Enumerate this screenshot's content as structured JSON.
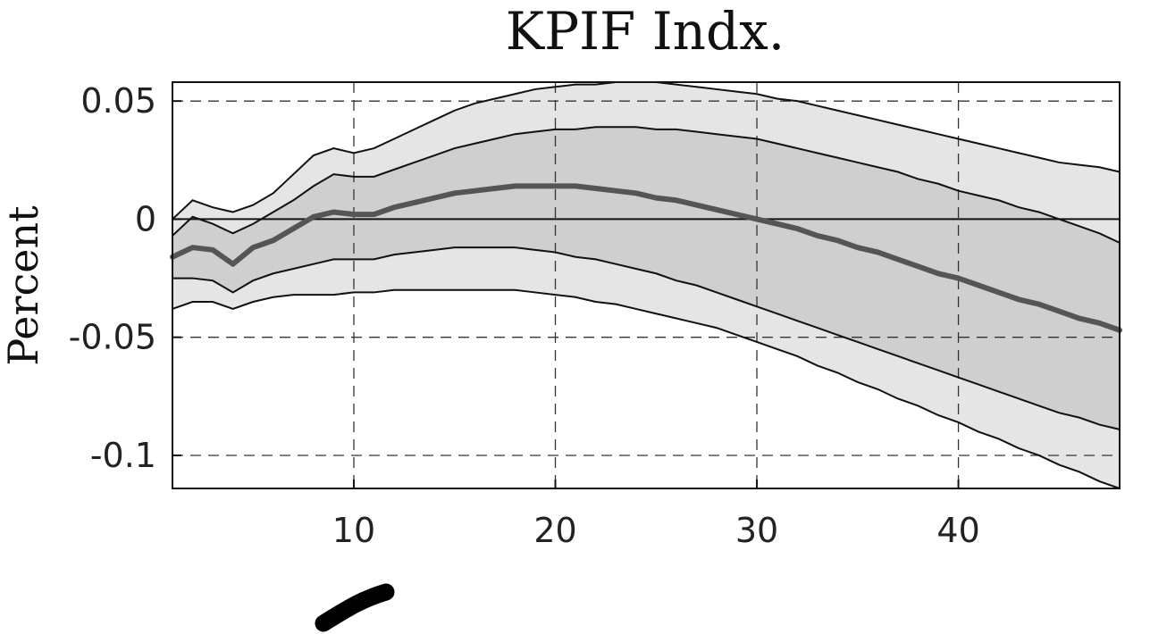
{
  "chart_data": {
    "type": "area",
    "title": "KPIF Indx.",
    "xlabel": "",
    "ylabel": "Percent",
    "xlim": [
      1,
      48
    ],
    "ylim": [
      -0.114,
      0.058
    ],
    "xticks": [
      10,
      20,
      30,
      40
    ],
    "xtick_labels": [
      "10",
      "20",
      "30",
      "40"
    ],
    "yticks": [
      0.05,
      0,
      -0.05,
      -0.1
    ],
    "ytick_labels": [
      "0.05",
      "0",
      "-0.05",
      "-0.1"
    ],
    "grid": true,
    "zero_line": true,
    "x": [
      1,
      2,
      3,
      4,
      5,
      6,
      7,
      8,
      9,
      10,
      11,
      12,
      13,
      14,
      15,
      16,
      17,
      18,
      19,
      20,
      21,
      22,
      23,
      24,
      25,
      26,
      27,
      28,
      29,
      30,
      31,
      32,
      33,
      34,
      35,
      36,
      37,
      38,
      39,
      40,
      41,
      42,
      43,
      44,
      45,
      46,
      47,
      48
    ],
    "series": [
      {
        "role": "outer_band",
        "upper": [
          0.0,
          0.008,
          0.005,
          0.003,
          0.006,
          0.011,
          0.019,
          0.027,
          0.03,
          0.028,
          0.03,
          0.034,
          0.038,
          0.042,
          0.046,
          0.049,
          0.051,
          0.053,
          0.055,
          0.056,
          0.057,
          0.057,
          0.058,
          0.058,
          0.058,
          0.057,
          0.056,
          0.055,
          0.054,
          0.053,
          0.051,
          0.05,
          0.048,
          0.046,
          0.044,
          0.042,
          0.04,
          0.038,
          0.036,
          0.034,
          0.032,
          0.03,
          0.028,
          0.026,
          0.024,
          0.023,
          0.022,
          0.02
        ],
        "lower": [
          -0.038,
          -0.035,
          -0.035,
          -0.038,
          -0.035,
          -0.033,
          -0.032,
          -0.032,
          -0.032,
          -0.031,
          -0.031,
          -0.03,
          -0.03,
          -0.03,
          -0.03,
          -0.03,
          -0.03,
          -0.03,
          -0.031,
          -0.032,
          -0.033,
          -0.035,
          -0.036,
          -0.038,
          -0.04,
          -0.042,
          -0.044,
          -0.046,
          -0.049,
          -0.052,
          -0.055,
          -0.058,
          -0.062,
          -0.065,
          -0.069,
          -0.072,
          -0.076,
          -0.079,
          -0.083,
          -0.086,
          -0.09,
          -0.093,
          -0.097,
          -0.1,
          -0.104,
          -0.107,
          -0.111,
          -0.114
        ]
      },
      {
        "role": "inner_band",
        "upper": [
          -0.007,
          0.001,
          -0.002,
          -0.006,
          -0.002,
          0.003,
          0.008,
          0.014,
          0.019,
          0.018,
          0.018,
          0.021,
          0.024,
          0.027,
          0.03,
          0.032,
          0.034,
          0.036,
          0.037,
          0.038,
          0.038,
          0.039,
          0.039,
          0.039,
          0.038,
          0.038,
          0.037,
          0.036,
          0.035,
          0.034,
          0.032,
          0.03,
          0.028,
          0.026,
          0.024,
          0.022,
          0.02,
          0.017,
          0.015,
          0.012,
          0.01,
          0.008,
          0.005,
          0.003,
          0.0,
          -0.003,
          -0.006,
          -0.01
        ]
      },
      {
        "role": "inner_band_lower",
        "lower": [
          -0.025,
          -0.025,
          -0.026,
          -0.031,
          -0.026,
          -0.023,
          -0.021,
          -0.019,
          -0.017,
          -0.017,
          -0.017,
          -0.015,
          -0.014,
          -0.013,
          -0.012,
          -0.012,
          -0.012,
          -0.012,
          -0.013,
          -0.014,
          -0.016,
          -0.017,
          -0.019,
          -0.021,
          -0.023,
          -0.026,
          -0.028,
          -0.031,
          -0.034,
          -0.037,
          -0.04,
          -0.043,
          -0.046,
          -0.049,
          -0.052,
          -0.055,
          -0.058,
          -0.061,
          -0.064,
          -0.067,
          -0.07,
          -0.073,
          -0.076,
          -0.079,
          -0.082,
          -0.084,
          -0.087,
          -0.089
        ]
      },
      {
        "role": "median",
        "values": [
          -0.016,
          -0.012,
          -0.013,
          -0.019,
          -0.012,
          -0.009,
          -0.004,
          0.001,
          0.003,
          0.002,
          0.002,
          0.005,
          0.007,
          0.009,
          0.011,
          0.012,
          0.013,
          0.014,
          0.014,
          0.014,
          0.014,
          0.013,
          0.012,
          0.011,
          0.009,
          0.008,
          0.006,
          0.004,
          0.002,
          0.0,
          -0.002,
          -0.004,
          -0.007,
          -0.009,
          -0.012,
          -0.014,
          -0.017,
          -0.02,
          -0.023,
          -0.025,
          -0.028,
          -0.031,
          -0.034,
          -0.036,
          -0.039,
          -0.042,
          -0.044,
          -0.047
        ]
      }
    ],
    "colors": {
      "outer_band": "#e5e5e5",
      "inner_band": "#cfcfcf",
      "band_edge": "#111111",
      "median": "#555555",
      "axis": "#111111",
      "grid": "#333333"
    }
  }
}
